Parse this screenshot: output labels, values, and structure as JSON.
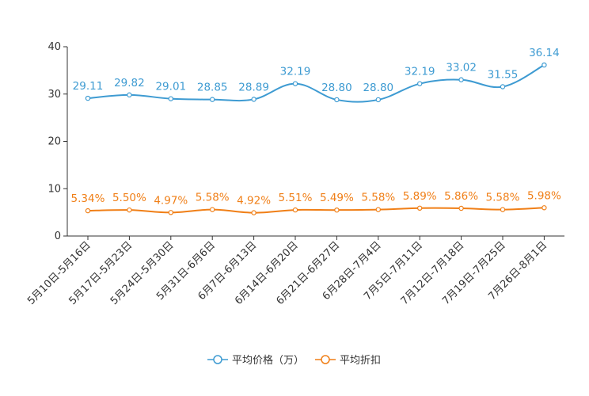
{
  "chart_data": {
    "type": "line",
    "categories": [
      "5月10日-5月16日",
      "5月17日-5月23日",
      "5月24日-5月30日",
      "5月31日-6月6日",
      "6月7日-6月13日",
      "6月14日-6月20日",
      "6月21日-6月27日",
      "6月28日-7月4日",
      "7月5日-7月11日",
      "7月12日-7月18日",
      "7月19日-7月25日",
      "7月26日-8月1日"
    ],
    "ylim": [
      0,
      40
    ],
    "yticks": [
      0,
      10,
      20,
      30,
      40
    ],
    "series": [
      {
        "name": "平均价格（万）",
        "color": "#3e9bd2",
        "values": [
          29.11,
          29.82,
          29.01,
          28.85,
          28.89,
          32.19,
          28.8,
          28.8,
          32.19,
          33.02,
          31.55,
          36.14
        ],
        "labels": [
          "29.11",
          "29.82",
          "29.01",
          "28.85",
          "28.89",
          "32.19",
          "28.80",
          "28.80",
          "32.19",
          "33.02",
          "31.55",
          "36.14"
        ]
      },
      {
        "name": "平均折扣",
        "color": "#f07f17",
        "values": [
          5.34,
          5.5,
          4.97,
          5.58,
          4.92,
          5.51,
          5.49,
          5.58,
          5.89,
          5.86,
          5.58,
          5.98
        ],
        "labels": [
          "5.34%",
          "5.50%",
          "4.97%",
          "5.58%",
          "4.92%",
          "5.51%",
          "5.49%",
          "5.58%",
          "5.89%",
          "5.86%",
          "5.58%",
          "5.98%"
        ]
      }
    ],
    "legend_position": "bottom-center",
    "title": "",
    "xlabel": "",
    "ylabel": ""
  }
}
